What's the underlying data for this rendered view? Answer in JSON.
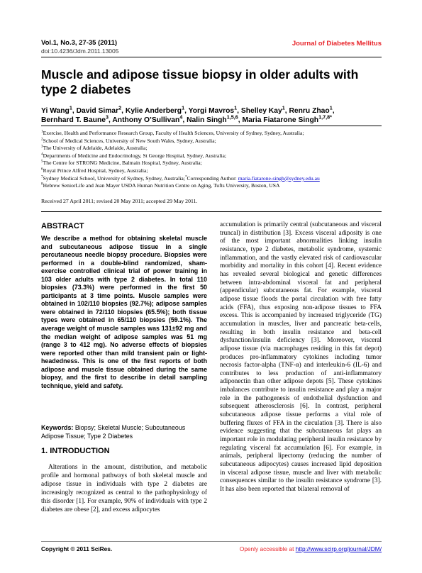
{
  "header": {
    "journal_ref": "Vol.1, No.3, 27-35 (2011)",
    "doi": "doi:10.4236/Jdm.2011.13005",
    "journal": "Journal of Diabetes Mellitus"
  },
  "title": "Muscle and adipose tissue biopsy in older adults with type 2 diabetes",
  "authors": [
    {
      "name": "Yi Wang",
      "sup": "1",
      "after": ","
    },
    {
      "name": "David Simar",
      "sup": "2",
      "after": ","
    },
    {
      "name": "Kylie Anderberg",
      "sup": "1",
      "after": ","
    },
    {
      "name": "Yorgi Mavros",
      "sup": "1",
      "after": ","
    },
    {
      "name": "Shelley Kay",
      "sup": "1",
      "after": ","
    },
    {
      "name": "Renru Zhao",
      "sup": "1",
      "after": ","
    },
    {
      "name": "Bernhard T. Baune",
      "sup": "3",
      "after": ","
    },
    {
      "name": "Anthony O’Sullivan",
      "sup": "4",
      "after": ","
    },
    {
      "name": "Nalin Singh",
      "sup": "1,5,6",
      "after": ","
    },
    {
      "name": "Maria Fiatarone Singh",
      "sup": "1,7,8*"
    }
  ],
  "affiliations": [
    {
      "sup": "1",
      "text": "Exercise, Health and Performance Research Group, Faculty of Health Sciences, University of Sydney, Sydney, Australia;"
    },
    {
      "sup": "2",
      "text": "School of Medical Sciences, University of New South Wales, Sydney, Australia;"
    },
    {
      "sup": "3",
      "text": "The University of Adelaide, Adelaide, Australia;"
    },
    {
      "sup": "4",
      "text": "Departments of Medicine and Endocrinology, St George Hospital, Sydney, Australia;"
    },
    {
      "sup": "5",
      "text": "The Centre for STRONG Medicine, Balmain Hospital, Sydney, Australia;"
    },
    {
      "sup": "6",
      "text": "Royal Prince Alfred Hospital, Sydney, Australia;"
    },
    {
      "sup": "7",
      "text": "Sydney Medical School, University of Sydney, Sydney, Australia;",
      "corr_mark": "*",
      "corr_label": "Corresponding Author:",
      "email": "maria.fiatarone-singh@sydney.edu.au"
    },
    {
      "sup": "8",
      "text": "Hebrew SeniorLife and Jean Mayer USDA Human Nutrition Centre on Aging, Tufts University, Boston, USA"
    }
  ],
  "dates": "Received 27 April 2011; revised 20 May 2011; accepted 29 May 2011.",
  "abstract": {
    "heading": "ABSTRACT",
    "text": "We describe a method for obtaining skeletal muscle and subcutaneous adipose tissue in a single percutaneous needle biopsy procedure. Biopsies were performed in a double-blind randomized, sham-exercise controlled clinical trial of power training in 103 older adults with type 2 diabetes. In total 110 biopsies (73.3%) were performed in the first 50 participants at 3 time points. Muscle samples were obtained in 102/110 biopsies (92.7%); adipose samples were obtained in 72/110 biopsies (65.5%); both tissue types were obtained in 65/110 biopsies (59.1%). The average weight of muscle samples was 131±92 mg and the median weight of adipose samples was 51 mg (range 3 to 412 mg). No adverse effects of biopsies were reported other than mild transient pain or light-headedness. This is one of the first reports of both adipose and muscle tissue obtained during the same biopsy, and the first to describe in detail sampling technique, yield and safety."
  },
  "keywords": {
    "label": "Keywords:",
    "text": "Biopsy; Skeletal Muscle; Subcutaneous Adipose Tissue; Type 2 Diabetes"
  },
  "introduction": {
    "heading": "1. INTRODUCTION",
    "left_column": "Alterations in the amount, distribution, and metabolic profile and hormonal pathways of both skeletal muscle and adipose tissue in individuals with type 2 diabetes are increasingly recognized as central to the pathophysiology of this disorder [1]. For example, 90% of individuals with type 2 diabetes are obese [2], and excess adipocytes",
    "right_column": "accumulation is primarily central (subcutaneous and visceral truncal) in distribution [3]. Excess visceral adiposity is one of the most important abnormalities linking insulin resistance, type 2 diabetes, metabolic syndrome, systemic inflammation, and the vastly elevated risk of cardiovascular morbidity and mortality in this cohort [4]. Recent evidence has revealed several biological and genetic differences between intra-abdominal visceral fat and peripheral (appendicular) subcutaneous fat. For example, visceral adipose tissue floods the portal circulation with free fatty acids (FFA), thus exposing non-adipose tissues to FFA excess. This is accompanied by increased triglyceride (TG) accumulation in muscles, liver and pancreatic beta-cells, resulting in both insulin resistance and beta-cell dysfunction/insulin deficiency [3]. Moreover, visceral adipose tissue (via macrophages residing in this fat depot) produces pro-inflammatory cytokines including tumor necrosis factor-alpha (TNF-α) and interleukin-6 (IL-6) and contributes to less production of anti-inflammatory adiponectin than other adipose depots [5]. These cytokines imbalances contribute to insulin resistance and play a major role in the pathogenesis of endothelial dysfunction and subsequent atherosclerosis [6]. In contrast, peripheral subcutaneous adipose tissue performs a vital role of buffering fluxes of FFA in the circulation [3]. There is also evidence suggesting that the subcutaneous fat plays an important role in modulating peripheral insulin resistance by regulating visceral fat accumulation [6]. For example, in animals, peripheral lipectomy (reducing the number of subcutaneous adipocytes) causes increased lipid deposition in visceral adipose tissue, muscle and liver with metabolic consequences similar to the insulin resistance syndrome [3]. It has also been reported that bilateral removal of"
  },
  "footer": {
    "copyright": "Copyright © 2011 SciRes.",
    "access_label": "Openly accessible at ",
    "url": "http://www.scirp.org/journal/JDM/"
  }
}
